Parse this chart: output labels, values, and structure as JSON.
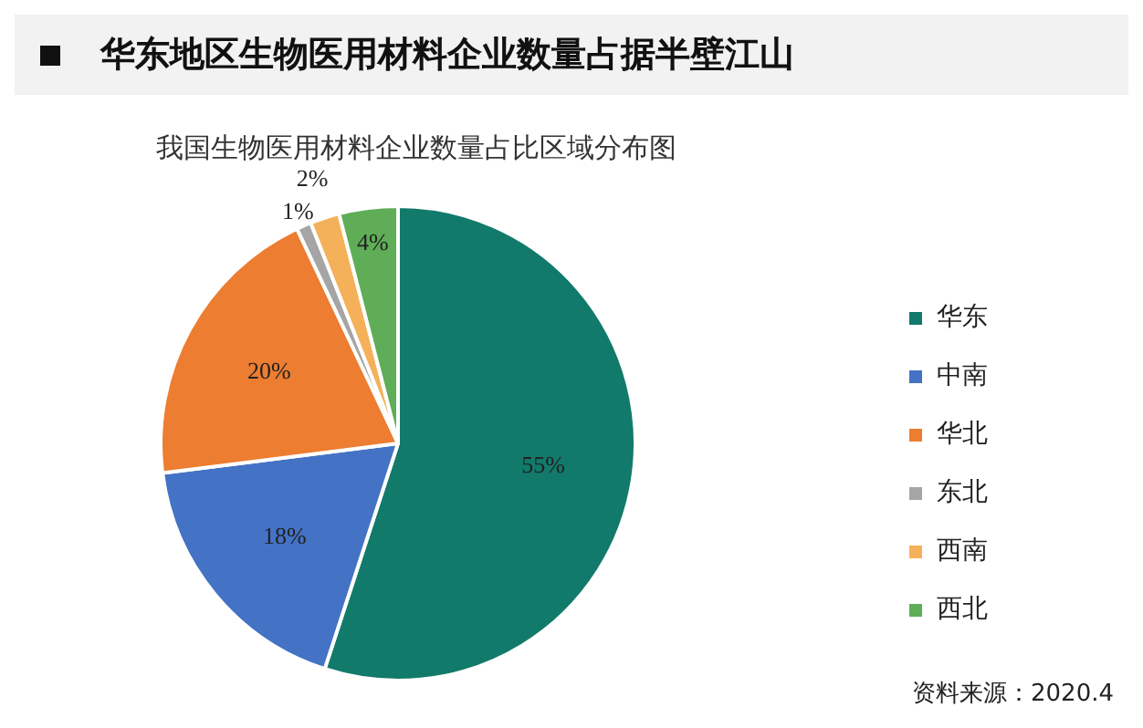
{
  "chart_data": {
    "type": "pie",
    "title": "华东地区生物医用材料企业数量占据半壁江山",
    "subtitle": "我国生物医用材料企业数量占比区域分布图",
    "categories": [
      "华东",
      "中南",
      "华北",
      "东北",
      "西南",
      "西北"
    ],
    "values": [
      55,
      18,
      20,
      1,
      2,
      4
    ],
    "colors": [
      "#127a6b",
      "#4472c4",
      "#ed7d31",
      "#a5a5a5",
      "#f5b15a",
      "#5fad56"
    ],
    "value_labels": [
      "55%",
      "18%",
      "20%",
      "1%",
      "2%",
      "4%"
    ],
    "legend": "right",
    "annotations": [
      "资料来源：2020.4"
    ]
  }
}
